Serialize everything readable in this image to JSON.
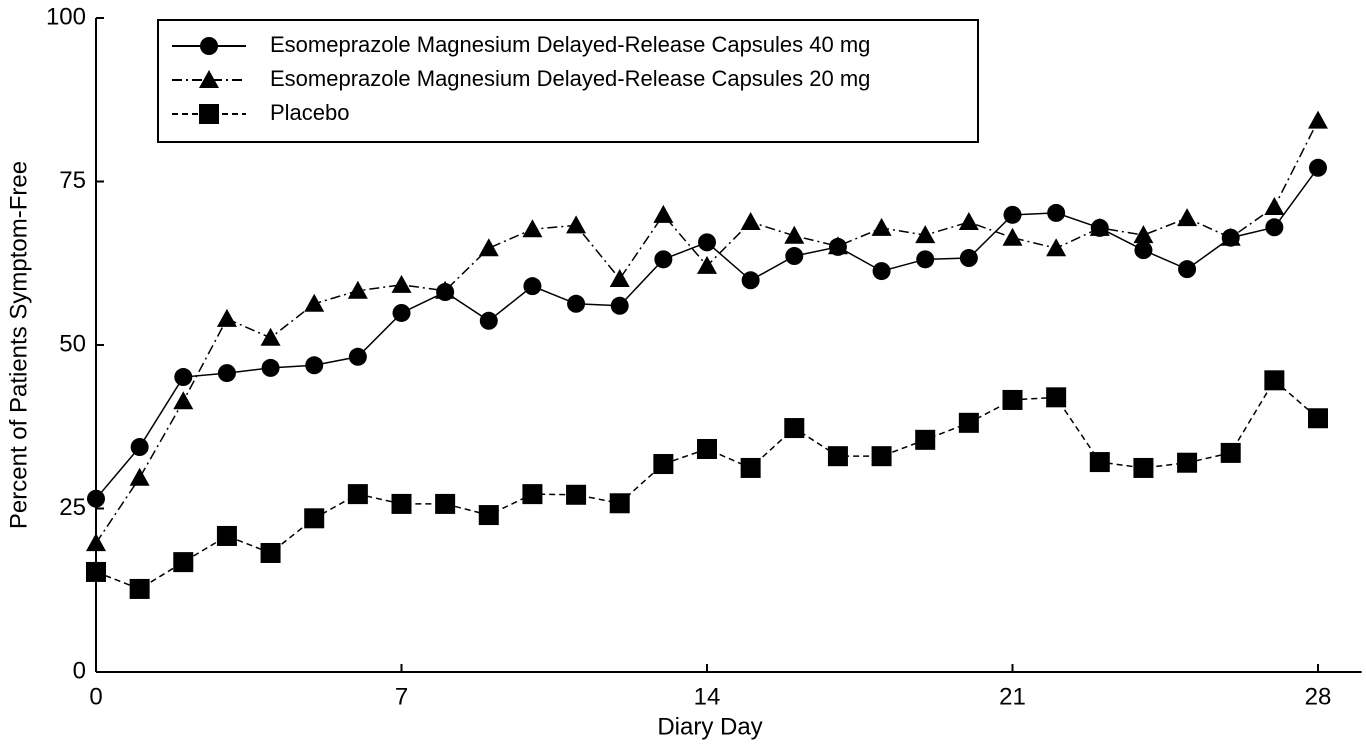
{
  "chart_data": {
    "type": "line",
    "x_label": "Diary Day",
    "y_label": "Percent of Patients Symptom-Free",
    "x": [
      0,
      1,
      2,
      3,
      4,
      5,
      6,
      7,
      8,
      9,
      10,
      11,
      12,
      13,
      14,
      15,
      16,
      17,
      18,
      19,
      20,
      21,
      22,
      23,
      24,
      25,
      26,
      27,
      28
    ],
    "xlim": [
      0,
      29
    ],
    "xticks": [
      0,
      7,
      14,
      21,
      28
    ],
    "ylim": [
      0,
      100
    ],
    "yticks": [
      0,
      25,
      50,
      75,
      100
    ],
    "grid": false,
    "legend": "upper left",
    "series": [
      {
        "name": "Esomeprazole Magnesium Delayed-Release Capsules 40 mg",
        "color": "#000000",
        "linestyle": "solid",
        "marker": "circle",
        "values": [
          26.5,
          34.4,
          45.1,
          45.7,
          46.5,
          46.9,
          48.2,
          54.9,
          58.1,
          53.7,
          59.0,
          56.3,
          56.0,
          63.1,
          65.7,
          59.9,
          63.6,
          65.0,
          61.3,
          63.1,
          63.3,
          69.9,
          70.2,
          67.9,
          64.5,
          61.6,
          66.4,
          68.0,
          77.1
        ]
      },
      {
        "name": "Esomeprazole Magnesium Delayed-Release Capsules 20 mg",
        "color": "#000000",
        "linestyle": "dashdot",
        "marker": "triangle",
        "values": [
          19.7,
          29.7,
          41.4,
          54.0,
          51.1,
          56.3,
          58.3,
          59.2,
          58.3,
          64.8,
          67.7,
          68.3,
          60.1,
          69.9,
          62.1,
          68.8,
          66.7,
          65.1,
          67.9,
          66.8,
          68.8,
          66.4,
          64.8,
          67.9,
          66.8,
          69.4,
          66.4,
          71.1,
          84.3
        ]
      },
      {
        "name": "Placebo",
        "color": "#000000",
        "linestyle": "dashed",
        "marker": "square",
        "values": [
          15.3,
          12.7,
          16.8,
          20.8,
          18.2,
          23.5,
          27.2,
          25.7,
          25.7,
          24.0,
          27.2,
          27.1,
          25.8,
          31.8,
          34.1,
          31.2,
          37.3,
          33.0,
          33.0,
          35.5,
          38.1,
          41.6,
          42.0,
          32.1,
          31.2,
          32.0,
          33.5,
          44.6,
          38.8
        ]
      }
    ]
  }
}
